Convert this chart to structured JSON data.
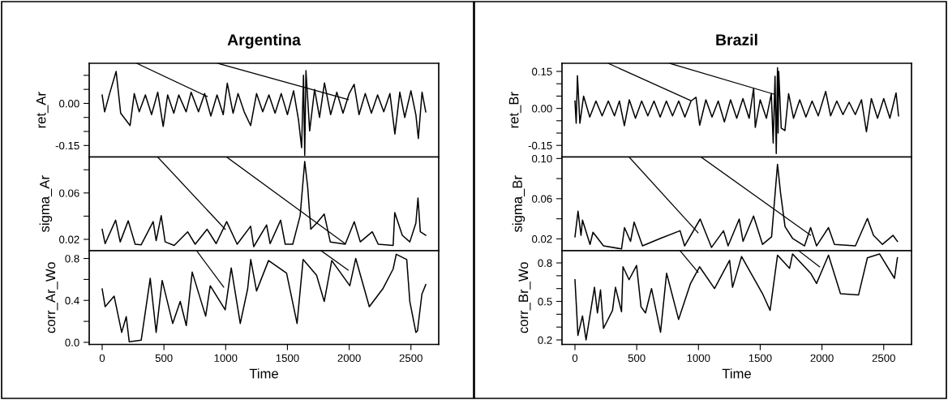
{
  "chart_data": [
    {
      "type": "line",
      "title": "Argentina",
      "ylabel": "ret_Ar",
      "tick_labels": "y",
      "xlim": [
        -105,
        2725
      ],
      "ylim": [
        -0.191,
        0.143
      ],
      "yticks": [
        {
          "value": 0.1,
          "label": null
        },
        {
          "value": 0.05,
          "label": null
        },
        {
          "value": 0.0,
          "label": "0.00"
        },
        {
          "value": -0.05,
          "label": null
        },
        {
          "value": -0.1,
          "label": null
        },
        {
          "value": -0.15,
          "label": "-0.15"
        }
      ],
      "grid": false,
      "legend": false,
      "marker": "none",
      "line_style": "solid",
      "series": [
        {
          "color": "#000000",
          "x": [
            0,
            20,
            60,
            113,
            150,
            226,
            260,
            300,
            350,
            400,
            450,
            494,
            530,
            580,
            620,
            680,
            720,
            780,
            830,
            880,
            930,
            980,
            1013,
            1060,
            1100,
            1150,
            1202,
            1250,
            1300,
            1350,
            1400,
            1450,
            1500,
            1550,
            1590,
            1615,
            1630,
            1640,
            1650,
            1680,
            1720,
            1760,
            1800,
            1850,
            1900,
            1950,
            2000,
            2040,
            2080,
            2130,
            2180,
            2230,
            2280,
            2330,
            2370,
            2410,
            2450,
            2500,
            2540,
            2560,
            2590,
            2620
          ],
          "values": [
            0.03,
            -0.03,
            0.035,
            0.114,
            -0.035,
            -0.079,
            0.035,
            -0.03,
            0.03,
            -0.04,
            0.04,
            -0.082,
            0.03,
            -0.035,
            0.03,
            -0.03,
            0.04,
            -0.03,
            0.035,
            -0.045,
            0.03,
            -0.04,
            0.072,
            -0.035,
            0.035,
            -0.03,
            -0.079,
            0.035,
            -0.03,
            0.03,
            -0.035,
            0.035,
            -0.04,
            0.045,
            -0.06,
            -0.158,
            0.1,
            -0.185,
            0.117,
            -0.098,
            0.05,
            -0.05,
            0.073,
            -0.04,
            0.04,
            -0.035,
            0.035,
            0.068,
            -0.04,
            0.035,
            -0.035,
            0.03,
            -0.03,
            0.035,
            -0.109,
            0.04,
            -0.05,
            0.045,
            -0.04,
            -0.125,
            0.04,
            -0.03
          ]
        },
        {
          "color": "#000000",
          "x": [
            279,
            850
          ],
          "values": [
            0.143,
            0.025
          ]
        },
        {
          "color": "#000000",
          "x": [
            935,
            1992
          ],
          "values": [
            0.143,
            0.014
          ]
        }
      ]
    },
    {
      "type": "line",
      "ylabel": "sigma_Ar",
      "tick_labels": "y",
      "xlim": [
        -105,
        2725
      ],
      "ylim": [
        0.0102,
        0.091
      ],
      "yticks": [
        {
          "value": 0.08,
          "label": null
        },
        {
          "value": 0.06,
          "label": "0.06"
        },
        {
          "value": 0.04,
          "label": null
        },
        {
          "value": 0.02,
          "label": "0.02"
        }
      ],
      "grid": false,
      "legend": false,
      "marker": "none",
      "line_style": "solid",
      "series": [
        {
          "color": "#000000",
          "x": [
            0,
            24,
            109,
            146,
            211,
            267,
            316,
            413,
            437,
            478,
            510,
            583,
            692,
            753,
            850,
            923,
            1008,
            1093,
            1202,
            1227,
            1331,
            1360,
            1445,
            1482,
            1543,
            1603,
            1640,
            1664,
            1689,
            1737,
            1798,
            1847,
            1968,
            2041,
            2090,
            2187,
            2235,
            2356,
            2369,
            2430,
            2491,
            2540,
            2557,
            2576,
            2620
          ],
          "values": [
            0.0287,
            0.0163,
            0.0365,
            0.0178,
            0.036,
            0.0158,
            0.0153,
            0.0353,
            0.0189,
            0.0404,
            0.0178,
            0.0148,
            0.0265,
            0.0158,
            0.0287,
            0.0163,
            0.0353,
            0.0158,
            0.0313,
            0.0137,
            0.0324,
            0.0163,
            0.0365,
            0.0158,
            0.0158,
            0.0404,
            0.0872,
            0.0651,
            0.0287,
            0.034,
            0.0418,
            0.0178,
            0.0158,
            0.0352,
            0.0178,
            0.0265,
            0.0158,
            0.0148,
            0.0431,
            0.0235,
            0.0178,
            0.034,
            0.0557,
            0.0265,
            0.0235
          ]
        },
        {
          "color": "#000000",
          "x": [
            449,
            996
          ],
          "values": [
            0.091,
            0.0287
          ]
        },
        {
          "color": "#000000",
          "x": [
            1008,
            1968
          ],
          "values": [
            0.091,
            0.0162
          ]
        }
      ]
    },
    {
      "type": "line",
      "ylabel": "corr_Ar_Wo",
      "xlabel": "Time",
      "xlim": [
        -105,
        2725
      ],
      "xticks": [
        0,
        500,
        1000,
        1500,
        2000,
        2500
      ],
      "ylim": [
        -0.02,
        0.874
      ],
      "yticks": [
        {
          "value": 0.8,
          "label": "0.8"
        },
        {
          "value": 0.6,
          "label": null
        },
        {
          "value": 0.4,
          "label": "0.4"
        },
        {
          "value": 0.2,
          "label": null
        },
        {
          "value": 0.0,
          "label": "0.0"
        }
      ],
      "grid": false,
      "legend": false,
      "marker": "none",
      "line_style": "solid",
      "series": [
        {
          "color": "#000000",
          "x": [
            0,
            24,
            97,
            158,
            195,
            219,
            316,
            389,
            437,
            486,
            571,
            632,
            681,
            729,
            838,
            875,
            996,
            1045,
            1118,
            1178,
            1203,
            1250,
            1347,
            1493,
            1578,
            1627,
            1736,
            1798,
            1859,
            2005,
            2053,
            2163,
            2272,
            2356,
            2381,
            2466,
            2491,
            2540,
            2553,
            2589,
            2620
          ],
          "values": [
            0.51,
            0.34,
            0.44,
            0.095,
            0.245,
            0.006,
            0.02,
            0.61,
            0.095,
            0.59,
            0.18,
            0.39,
            0.16,
            0.67,
            0.25,
            0.54,
            0.31,
            0.71,
            0.18,
            0.51,
            0.79,
            0.49,
            0.78,
            0.66,
            0.18,
            0.79,
            0.64,
            0.39,
            0.78,
            0.54,
            0.8,
            0.34,
            0.51,
            0.7,
            0.84,
            0.79,
            0.39,
            0.095,
            0.11,
            0.46,
            0.55
          ]
        },
        {
          "color": "#000000",
          "x": [
            765,
            984
          ],
          "values": [
            0.874,
            0.526
          ]
        },
        {
          "color": "#000000",
          "x": [
            1773,
            1992
          ],
          "values": [
            0.874,
            0.69
          ]
        }
      ]
    },
    {
      "type": "line",
      "title": "Brazil",
      "ylabel": "ret_Br",
      "tick_labels": "y",
      "xlim": [
        -105,
        2725
      ],
      "ylim": [
        -0.197,
        0.183
      ],
      "yticks": [
        {
          "value": 0.15,
          "label": "0.15"
        },
        {
          "value": 0.1,
          "label": null
        },
        {
          "value": 0.05,
          "label": null
        },
        {
          "value": 0.0,
          "label": "0.00"
        },
        {
          "value": -0.05,
          "label": null
        },
        {
          "value": -0.1,
          "label": null
        },
        {
          "value": -0.15,
          "label": "-0.15"
        }
      ],
      "grid": false,
      "legend": false,
      "marker": "none",
      "line_style": "solid",
      "series": [
        {
          "color": "#000000",
          "x": [
            0,
            10,
            20,
            40,
            70,
            120,
            170,
            220,
            270,
            320,
            360,
            400,
            440,
            490,
            540,
            590,
            640,
            690,
            740,
            790,
            840,
            890,
            940,
            980,
            1010,
            1060,
            1110,
            1160,
            1210,
            1260,
            1310,
            1360,
            1410,
            1447,
            1460,
            1500,
            1550,
            1590,
            1605,
            1620,
            1630,
            1640,
            1645,
            1650,
            1670,
            1700,
            1730,
            1770,
            1820,
            1870,
            1920,
            1970,
            2030,
            2070,
            2120,
            2170,
            2220,
            2270,
            2320,
            2360,
            2400,
            2450,
            2500,
            2550,
            2600,
            2620
          ],
          "values": [
            0.03,
            -0.06,
            0.133,
            -0.06,
            0.05,
            -0.035,
            0.03,
            -0.03,
            0.03,
            -0.03,
            0.03,
            -0.07,
            0.035,
            -0.04,
            0.03,
            -0.03,
            0.03,
            -0.035,
            0.03,
            -0.03,
            0.03,
            -0.035,
            0.03,
            0.045,
            -0.068,
            0.035,
            -0.035,
            0.03,
            -0.055,
            0.035,
            -0.04,
            0.04,
            -0.04,
            0.082,
            -0.077,
            0.035,
            -0.04,
            0.06,
            -0.14,
            0.13,
            -0.183,
            0.165,
            -0.1,
            0.15,
            -0.08,
            -0.09,
            0.06,
            -0.04,
            0.035,
            -0.035,
            0.03,
            -0.03,
            0.069,
            -0.03,
            0.03,
            -0.025,
            0.025,
            -0.025,
            0.035,
            -0.095,
            0.04,
            -0.04,
            0.04,
            -0.04,
            0.063,
            -0.03
          ]
        },
        {
          "color": "#000000",
          "x": [
            268,
            936
          ],
          "values": [
            0.183,
            0.032
          ]
        },
        {
          "color": "#000000",
          "x": [
            766,
            1617
          ],
          "values": [
            0.183,
            0.057
          ]
        }
      ]
    },
    {
      "type": "line",
      "ylabel": "sigma_Br",
      "tick_labels": "y",
      "xlim": [
        -105,
        2725
      ],
      "ylim": [
        0.0082,
        0.1015
      ],
      "yticks": [
        {
          "value": 0.1,
          "label": "0.10"
        },
        {
          "value": 0.08,
          "label": null
        },
        {
          "value": 0.06,
          "label": "0.06"
        },
        {
          "value": 0.04,
          "label": null
        },
        {
          "value": 0.02,
          "label": "0.02"
        }
      ],
      "grid": false,
      "legend": false,
      "marker": "none",
      "line_style": "solid",
      "series": [
        {
          "color": "#000000",
          "x": [
            0,
            25,
            49,
            61,
            122,
            146,
            231,
            377,
            401,
            450,
            479,
            547,
            693,
            851,
            888,
            1014,
            1106,
            1203,
            1240,
            1330,
            1361,
            1446,
            1519,
            1592,
            1640,
            1665,
            1701,
            1762,
            1859,
            1908,
            1956,
            2053,
            2101,
            2271,
            2368,
            2417,
            2490,
            2575,
            2611
          ],
          "values": [
            0.022,
            0.0475,
            0.0235,
            0.0387,
            0.0145,
            0.0266,
            0.013,
            0.01,
            0.0312,
            0.0175,
            0.0366,
            0.013,
            0.0205,
            0.0281,
            0.013,
            0.0397,
            0.0115,
            0.0281,
            0.013,
            0.0397,
            0.0175,
            0.0427,
            0.0145,
            0.022,
            0.0943,
            0.0655,
            0.0321,
            0.0205,
            0.013,
            0.0312,
            0.013,
            0.0312,
            0.0145,
            0.013,
            0.0403,
            0.0235,
            0.0145,
            0.0235,
            0.0175
          ]
        },
        {
          "color": "#000000",
          "x": [
            438,
            997
          ],
          "values": [
            0.1015,
            0.026
          ]
        },
        {
          "color": "#000000",
          "x": [
            1021,
            1908
          ],
          "values": [
            0.1015,
            0.0236
          ]
        }
      ]
    },
    {
      "type": "line",
      "ylabel": "corr_Br_Wo",
      "xlabel": "Time",
      "xlim": [
        -105,
        2725
      ],
      "xticks": [
        0,
        500,
        1000,
        1500,
        2000,
        2500
      ],
      "ylim": [
        0.165,
        0.895
      ],
      "yticks": [
        {
          "value": 0.8,
          "label": "0.8"
        },
        {
          "value": 0.7,
          "label": null
        },
        {
          "value": 0.6,
          "label": null
        },
        {
          "value": 0.5,
          "label": "0.5"
        },
        {
          "value": 0.4,
          "label": null
        },
        {
          "value": 0.3,
          "label": null
        },
        {
          "value": 0.2,
          "label": "0.2"
        }
      ],
      "grid": false,
      "legend": false,
      "marker": "none",
      "line_style": "solid",
      "series": [
        {
          "color": "#000000",
          "x": [
            0,
            12,
            24,
            61,
            90,
            158,
            182,
            207,
            231,
            304,
            328,
            377,
            389,
            438,
            499,
            535,
            571,
            620,
            693,
            742,
            839,
            936,
            1009,
            1130,
            1252,
            1276,
            1349,
            1519,
            1580,
            1640,
            1738,
            1762,
            1908,
            1956,
            2053,
            2150,
            2296,
            2368,
            2466,
            2587,
            2611
          ],
          "values": [
            0.669,
            0.458,
            0.235,
            0.387,
            0.2,
            0.61,
            0.41,
            0.59,
            0.29,
            0.43,
            0.61,
            0.42,
            0.77,
            0.669,
            0.78,
            0.458,
            0.41,
            0.6,
            0.26,
            0.72,
            0.36,
            0.64,
            0.77,
            0.6,
            0.82,
            0.61,
            0.85,
            0.56,
            0.43,
            0.86,
            0.758,
            0.87,
            0.72,
            0.64,
            0.86,
            0.56,
            0.55,
            0.84,
            0.87,
            0.68,
            0.84
          ]
        },
        {
          "color": "#000000",
          "x": [
            851,
            997
          ],
          "values": [
            0.895,
            0.727
          ]
        },
        {
          "color": "#000000",
          "x": [
            1811,
            1981
          ],
          "values": [
            0.895,
            0.77
          ]
        }
      ]
    }
  ]
}
